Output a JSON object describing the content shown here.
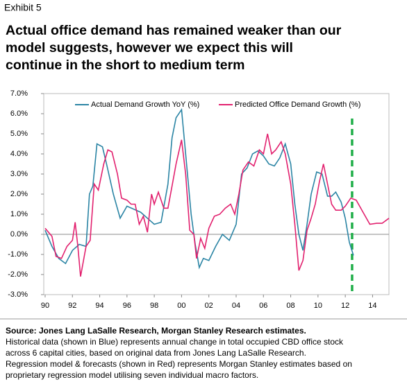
{
  "header": {
    "exhibit": "Exhibit 5",
    "title_lines": [
      "Actual office demand has remained weaker than our",
      "model suggests, however we expect this will",
      "continue in the short to medium term"
    ]
  },
  "chart_data": {
    "type": "line",
    "xlim": [
      1989.9,
      2015.2
    ],
    "ylim": [
      -3,
      7
    ],
    "xticks": [
      {
        "value": 1990,
        "label": "90"
      },
      {
        "value": 1992,
        "label": "92"
      },
      {
        "value": 1994,
        "label": "94"
      },
      {
        "value": 1996,
        "label": "96"
      },
      {
        "value": 1998,
        "label": "98"
      },
      {
        "value": 2000,
        "label": "00"
      },
      {
        "value": 2002,
        "label": "02"
      },
      {
        "value": 2004,
        "label": "04"
      },
      {
        "value": 2006,
        "label": "06"
      },
      {
        "value": 2008,
        "label": "08"
      },
      {
        "value": 2010,
        "label": "10"
      },
      {
        "value": 2012,
        "label": "12"
      },
      {
        "value": 2014,
        "label": "14"
      }
    ],
    "yticks": [
      {
        "value": 7,
        "label": "7.0%"
      },
      {
        "value": 6,
        "label": "6.0%"
      },
      {
        "value": 5,
        "label": "5.0%"
      },
      {
        "value": 4,
        "label": "4.0%"
      },
      {
        "value": 3,
        "label": "3.0%"
      },
      {
        "value": 2,
        "label": "2.0%"
      },
      {
        "value": 1,
        "label": "1.0%"
      },
      {
        "value": 0,
        "label": "0.0%"
      },
      {
        "value": -1,
        "label": "-1.0%"
      },
      {
        "value": -2,
        "label": "-2.0%"
      },
      {
        "value": -3,
        "label": "-3.0%"
      }
    ],
    "forecast_line": {
      "x": 2012.5,
      "color": "#1fae48"
    },
    "series": [
      {
        "name": "Actual Demand Growth YoY (%)",
        "color": "#2a84a4",
        "x": [
          1990.0,
          1990.5,
          1991.0,
          1991.5,
          1992.0,
          1992.5,
          1993.0,
          1993.25,
          1993.5,
          1993.8,
          1994.2,
          1994.5,
          1995.0,
          1995.5,
          1996.0,
          1997.0,
          1997.5,
          1998.0,
          1998.5,
          1999.0,
          1999.3,
          1999.6,
          2000.0,
          2000.3,
          2000.7,
          2001.0,
          2001.3,
          2001.6,
          2002.0,
          2002.5,
          2003.0,
          2003.5,
          2004.0,
          2004.4,
          2004.8,
          2005.2,
          2005.6,
          2006.0,
          2006.4,
          2006.8,
          2007.2,
          2007.6,
          2008.0,
          2008.3,
          2008.6,
          2008.9,
          2009.2,
          2009.5,
          2009.9,
          2010.3,
          2010.7,
          2011.0,
          2011.3,
          2011.7,
          2012.0,
          2012.3,
          2012.6
        ],
        "values": [
          0.2,
          -0.6,
          -1.2,
          -1.45,
          -0.8,
          -0.5,
          -0.6,
          2.0,
          2.4,
          4.5,
          4.35,
          3.5,
          2.0,
          0.8,
          1.4,
          1.1,
          0.8,
          0.5,
          0.6,
          2.5,
          4.8,
          5.8,
          6.2,
          4.0,
          1.0,
          -0.5,
          -1.65,
          -1.2,
          -1.3,
          -0.6,
          0.0,
          -0.3,
          0.5,
          3.0,
          3.3,
          4.0,
          4.15,
          3.9,
          3.5,
          3.4,
          3.8,
          4.5,
          3.5,
          1.5,
          0.0,
          -0.8,
          0.5,
          2.0,
          3.1,
          3.0,
          1.9,
          1.9,
          2.1,
          1.6,
          0.8,
          -0.4,
          -1.05
        ]
      },
      {
        "name": "Predicted Office Demand Growth (%)",
        "color": "#e2206e",
        "x": [
          1990.0,
          1990.5,
          1990.8,
          1991.2,
          1991.6,
          1992.0,
          1992.2,
          1992.4,
          1992.6,
          1993.0,
          1993.3,
          1993.6,
          1993.9,
          1994.3,
          1994.6,
          1994.9,
          1995.3,
          1995.6,
          1996.0,
          1996.3,
          1996.6,
          1996.9,
          1997.2,
          1997.5,
          1997.8,
          1998.0,
          1998.3,
          1998.7,
          1999.0,
          1999.3,
          1999.6,
          2000.0,
          2000.3,
          2000.6,
          2000.9,
          2001.1,
          2001.4,
          2001.7,
          2002.0,
          2002.4,
          2002.8,
          2003.2,
          2003.6,
          2003.9,
          2004.2,
          2004.5,
          2004.9,
          2005.3,
          2005.7,
          2006.0,
          2006.3,
          2006.6,
          2006.9,
          2007.3,
          2007.6,
          2008.0,
          2008.3,
          2008.6,
          2008.9,
          2009.2,
          2009.5,
          2009.8,
          2010.1,
          2010.4,
          2010.7,
          2011.0,
          2011.3,
          2011.7,
          2012.0,
          2012.4,
          2012.8,
          2013.3,
          2013.8,
          2014.3,
          2014.7,
          2015.2
        ],
        "values": [
          0.3,
          -0.1,
          -1.1,
          -1.2,
          -0.6,
          -0.3,
          0.6,
          -0.6,
          -2.1,
          -0.6,
          -0.3,
          2.5,
          2.2,
          3.5,
          4.2,
          4.1,
          3.0,
          1.8,
          1.7,
          1.5,
          1.5,
          0.5,
          0.9,
          0.1,
          2.0,
          1.5,
          2.1,
          1.3,
          1.3,
          2.4,
          3.5,
          4.7,
          3.0,
          0.2,
          0.0,
          -1.2,
          -0.2,
          -0.7,
          0.3,
          0.9,
          1.0,
          1.3,
          1.5,
          1.0,
          2.0,
          3.2,
          3.6,
          3.4,
          4.2,
          4.0,
          5.0,
          4.0,
          4.2,
          4.6,
          4.0,
          2.5,
          0.5,
          -1.8,
          -1.3,
          0.2,
          0.8,
          1.5,
          2.6,
          3.5,
          2.5,
          1.5,
          1.2,
          1.2,
          1.4,
          1.8,
          1.7,
          1.1,
          0.5,
          0.55,
          0.55,
          0.8
        ]
      }
    ]
  },
  "footer": {
    "source": "Source: Jones Lang LaSalle Research, Morgan Stanley Research estimates.",
    "note_lines": [
      "Historical data (shown in Blue) represents annual change in total occupied CBD office stock",
      "across 6 capital cities, based on original data from Jones Lang LaSalle Research.",
      "Regression model & forecasts (shown in Red) represents Morgan Stanley estimates based on",
      "proprietary regression model utilising seven individual macro factors."
    ]
  }
}
